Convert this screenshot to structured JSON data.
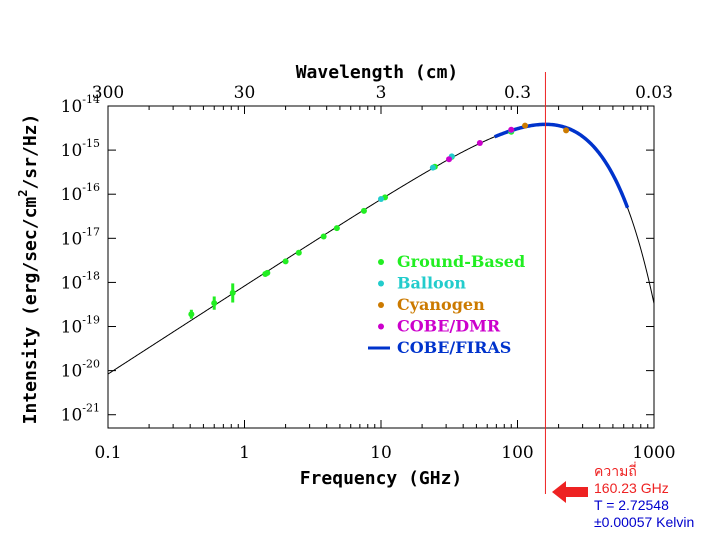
{
  "chart_data": {
    "type": "scatter",
    "title": "",
    "xlabel": "Frequency (GHz)",
    "ylabel": "Intensity (erg/sec/cm",
    "ylabel_exp": "2",
    "ylabel_tail": "/sr/Hz)",
    "top_axis_label": "Wavelength (cm)",
    "xscale": "log",
    "yscale": "log",
    "xlim": [
      0.1,
      1000
    ],
    "ylim": [
      5e-22,
      1e-14
    ],
    "x_ticks": [
      {
        "value": 0.1,
        "label": "0.1"
      },
      {
        "value": 1,
        "label": "1"
      },
      {
        "value": 10,
        "label": "10"
      },
      {
        "value": 100,
        "label": "100"
      },
      {
        "value": 1000,
        "label": "1000"
      }
    ],
    "top_ticks": [
      {
        "freq": 0.1,
        "label": "300"
      },
      {
        "freq": 1,
        "label": "30"
      },
      {
        "freq": 10,
        "label": "3"
      },
      {
        "freq": 100,
        "label": "0.3"
      },
      {
        "freq": 1000,
        "label": "0.03"
      }
    ],
    "y_ticks": [
      {
        "value": 1e-14,
        "exp": "-14"
      },
      {
        "value": 1e-15,
        "exp": "-15"
      },
      {
        "value": 1e-16,
        "exp": "-16"
      },
      {
        "value": 1e-17,
        "exp": "-17"
      },
      {
        "value": 1e-18,
        "exp": "-18"
      },
      {
        "value": 1e-19,
        "exp": "-19"
      },
      {
        "value": 1e-20,
        "exp": "-20"
      },
      {
        "value": 1e-21,
        "exp": "-21"
      }
    ],
    "tick_base": "10",
    "model_curve": {
      "temperature_K": 2.72548
    },
    "series": [
      {
        "name": "Ground-Based",
        "color": "#22ee22",
        "marker": "dot",
        "points": [
          {
            "x": 0.408,
            "y": 1.9e-19,
            "err_lo": 1.5e-19,
            "err_hi": 2.4e-19
          },
          {
            "x": 0.6,
            "y": 3.4e-19,
            "err_lo": 2.4e-19,
            "err_hi": 4.8e-19
          },
          {
            "x": 0.82,
            "y": 5.8e-19,
            "err_lo": 3.5e-19,
            "err_hi": 9.5e-19
          },
          {
            "x": 1.42,
            "y": 1.55e-18
          },
          {
            "x": 1.47,
            "y": 1.65e-18
          },
          {
            "x": 2.0,
            "y": 3e-18
          },
          {
            "x": 2.5,
            "y": 4.7e-18
          },
          {
            "x": 3.8,
            "y": 1.1e-17
          },
          {
            "x": 4.75,
            "y": 1.7e-17
          },
          {
            "x": 7.5,
            "y": 4.2e-17
          },
          {
            "x": 10.7,
            "y": 8.5e-17
          },
          {
            "x": 24.8,
            "y": 4.2e-16
          },
          {
            "x": 33.0,
            "y": 7e-16
          },
          {
            "x": 90.0,
            "y": 2.6e-15
          }
        ]
      },
      {
        "name": "Balloon",
        "color": "#22cccc",
        "marker": "dot",
        "points": [
          {
            "x": 10.0,
            "y": 7.8e-17
          },
          {
            "x": 24.0,
            "y": 4e-16
          },
          {
            "x": 33.0,
            "y": 7.2e-16
          },
          {
            "x": 90.0,
            "y": 2.8e-15
          }
        ]
      },
      {
        "name": "Cyanogen",
        "color": "#cc7a00",
        "marker": "dot",
        "points": [
          {
            "x": 113.6,
            "y": 3.6e-15
          },
          {
            "x": 227.0,
            "y": 2.8e-15
          }
        ]
      },
      {
        "name": "COBE/DMR",
        "color": "#cc00cc",
        "marker": "dot",
        "points": [
          {
            "x": 31.5,
            "y": 6.2e-16
          },
          {
            "x": 53.0,
            "y": 1.45e-15
          },
          {
            "x": 90.0,
            "y": 2.9e-15
          }
        ]
      },
      {
        "name": "COBE/FIRAS",
        "color": "#0033cc",
        "marker": "line",
        "x_range": [
          68,
          640
        ]
      }
    ],
    "legend_placement": "center-right",
    "annotation": {
      "marker_freq_ghz": 160.23,
      "line_color": "#ee2222",
      "arrow_color": "#ee2222",
      "lines": [
        {
          "text": "ความถี่",
          "color": "#ee2222"
        },
        {
          "text": "160.23 GHz",
          "color": "#ee2222"
        },
        {
          "text": "T = 2.72548",
          "color": "#0000cc"
        },
        {
          "text": "±0.00057 Kelvin",
          "color": "#0000cc"
        }
      ]
    }
  }
}
